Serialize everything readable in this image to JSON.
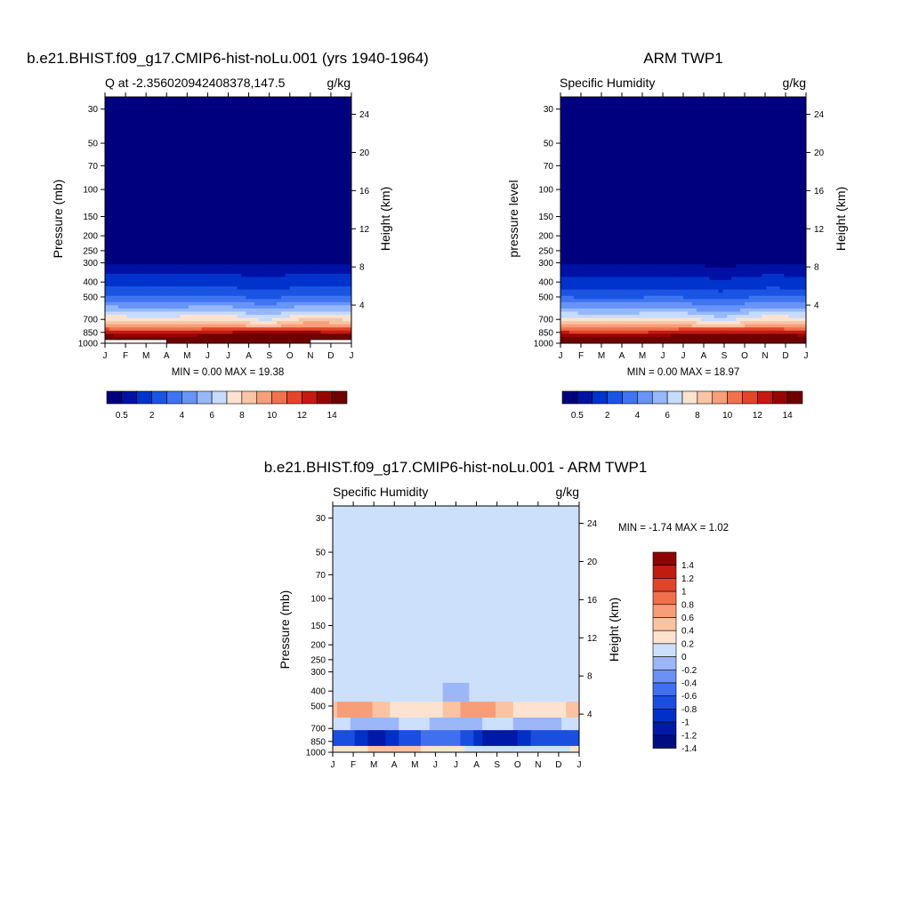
{
  "chart_data": [
    {
      "type": "heatmap",
      "title": "b.e21.BHIST.f09_g17.CMIP6-hist-noLu.001 (yrs 1940-1964)",
      "left_string": "Q at -2.356020942408378,147.5",
      "right_string": "g/kg",
      "ylabel": "Pressure (mb)",
      "ylabel_right": "Height (km)",
      "months": [
        "J",
        "F",
        "M",
        "A",
        "M",
        "J",
        "J",
        "A",
        "S",
        "O",
        "N",
        "D",
        "J"
      ],
      "pressure_ticks": [
        "30",
        "50",
        "70",
        "100",
        "150",
        "200",
        "250",
        "300",
        "400",
        "500",
        "700",
        "850",
        "1000"
      ],
      "pressure_values": [
        30,
        50,
        70,
        100,
        150,
        200,
        250,
        300,
        400,
        500,
        700,
        850,
        1000
      ],
      "ylim": [
        1000,
        25
      ],
      "height_ticks": [
        "4",
        "8",
        "12",
        "16",
        "20",
        "24"
      ],
      "height_values": [
        4,
        8,
        12,
        16,
        20,
        24
      ],
      "stats": "MIN =   0.00 MAX =  19.38",
      "min": 0.0,
      "max": 19.38,
      "colorbar_labels": [
        "0.5",
        "2",
        "4",
        "6",
        "8",
        "10",
        "12",
        "14"
      ],
      "colorbar_levels": [
        0.5,
        1,
        2,
        3,
        4,
        5,
        6,
        7,
        8,
        9,
        10,
        11,
        12,
        13,
        14
      ],
      "profile": [
        [
          1000,
          18.7
        ],
        [
          925,
          15.8
        ],
        [
          850,
          12.8
        ],
        [
          775,
          9.9
        ],
        [
          700,
          8.0
        ],
        [
          600,
          5.6
        ],
        [
          500,
          3.2
        ],
        [
          400,
          1.4
        ],
        [
          300,
          0.45
        ],
        [
          250,
          0.15
        ],
        [
          200,
          0.03
        ],
        [
          100,
          0.01
        ],
        [
          30,
          0.0
        ]
      ],
      "seasonal_amp": 0.35,
      "surface_missing": [
        [
          0,
          3
        ],
        [
          10,
          12
        ]
      ]
    },
    {
      "type": "heatmap",
      "title": "ARM TWP1",
      "left_string": "Specific Humidity",
      "right_string": "g/kg",
      "ylabel": "pressure level",
      "ylabel_right": "Height (km)",
      "months": [
        "J",
        "F",
        "M",
        "A",
        "M",
        "J",
        "J",
        "A",
        "S",
        "O",
        "N",
        "D",
        "J"
      ],
      "pressure_ticks": [
        "30",
        "50",
        "70",
        "100",
        "150",
        "200",
        "250",
        "300",
        "400",
        "500",
        "700",
        "850",
        "1000"
      ],
      "pressure_values": [
        30,
        50,
        70,
        100,
        150,
        200,
        250,
        300,
        400,
        500,
        700,
        850,
        1000
      ],
      "ylim": [
        1000,
        25
      ],
      "height_ticks": [
        "4",
        "8",
        "12",
        "16",
        "20",
        "24"
      ],
      "height_values": [
        4,
        8,
        12,
        16,
        20,
        24
      ],
      "stats": "MIN =   0.00 MAX =  18.97",
      "min": 0.0,
      "max": 18.97,
      "colorbar_labels": [
        "0.5",
        "2",
        "4",
        "6",
        "8",
        "10",
        "12",
        "14"
      ],
      "colorbar_levels": [
        0.5,
        1,
        2,
        3,
        4,
        5,
        6,
        7,
        8,
        9,
        10,
        11,
        12,
        13,
        14
      ],
      "profile": [
        [
          1000,
          18.3
        ],
        [
          925,
          15.5
        ],
        [
          850,
          12.4
        ],
        [
          775,
          9.6
        ],
        [
          700,
          7.7
        ],
        [
          600,
          5.2
        ],
        [
          500,
          3.0
        ],
        [
          400,
          1.3
        ],
        [
          300,
          0.42
        ],
        [
          250,
          0.14
        ],
        [
          200,
          0.03
        ],
        [
          100,
          0.01
        ],
        [
          30,
          0.0
        ]
      ],
      "seasonal_amp": 0.3,
      "surface_missing": []
    },
    {
      "type": "heatmap",
      "title": "b.e21.BHIST.f09_g17.CMIP6-hist-noLu.001 - ARM TWP1",
      "left_string": "Specific Humidity",
      "right_string": "g/kg",
      "ylabel": "Pressure (mb)",
      "ylabel_right": "Height (km)",
      "months": [
        "J",
        "F",
        "M",
        "A",
        "M",
        "J",
        "J",
        "A",
        "S",
        "O",
        "N",
        "D",
        "J"
      ],
      "pressure_ticks": [
        "30",
        "50",
        "70",
        "100",
        "150",
        "200",
        "250",
        "300",
        "400",
        "500",
        "700",
        "850",
        "1000"
      ],
      "pressure_values": [
        30,
        50,
        70,
        100,
        150,
        200,
        250,
        300,
        400,
        500,
        700,
        850,
        1000
      ],
      "ylim": [
        1000,
        25
      ],
      "height_ticks": [
        "4",
        "8",
        "12",
        "16",
        "20",
        "24"
      ],
      "height_values": [
        4,
        8,
        12,
        16,
        20,
        24
      ],
      "stats": "MIN =  -1.74 MAX =   1.02",
      "min": -1.74,
      "max": 1.02,
      "colorbar_labels": [
        "1.4",
        "1.2",
        "1",
        "0.8",
        "0.6",
        "0.4",
        "0.2",
        "0",
        "-0.2",
        "-0.4",
        "-0.6",
        "-0.8",
        "-1",
        "-1.2",
        "-1.4"
      ],
      "colorbar_levels": [
        -1.4,
        -1.2,
        -1,
        -0.8,
        -0.6,
        -0.4,
        -0.2,
        0,
        0.2,
        0.4,
        0.6,
        0.8,
        1,
        1.2,
        1.4
      ]
    }
  ],
  "colors": {
    "sequential": [
      "#00007f",
      "#0011a4",
      "#0033cc",
      "#1a54e3",
      "#3f74f2",
      "#6894f7",
      "#96b8fb",
      "#c6dbfd",
      "#fde3cf",
      "#fbc4a5",
      "#f89e7a",
      "#f2714e",
      "#e4442a",
      "#c41a12",
      "#970404",
      "#6e0000"
    ],
    "diverging": [
      "#000d82",
      "#0019a8",
      "#0030c8",
      "#1a4ee0",
      "#4070f0",
      "#6c91f4",
      "#9cb7f8",
      "#cce0fc",
      "#fde3cf",
      "#fbc3a2",
      "#f79d77",
      "#f0704c",
      "#e0452a",
      "#c01c10",
      "#900303"
    ]
  }
}
